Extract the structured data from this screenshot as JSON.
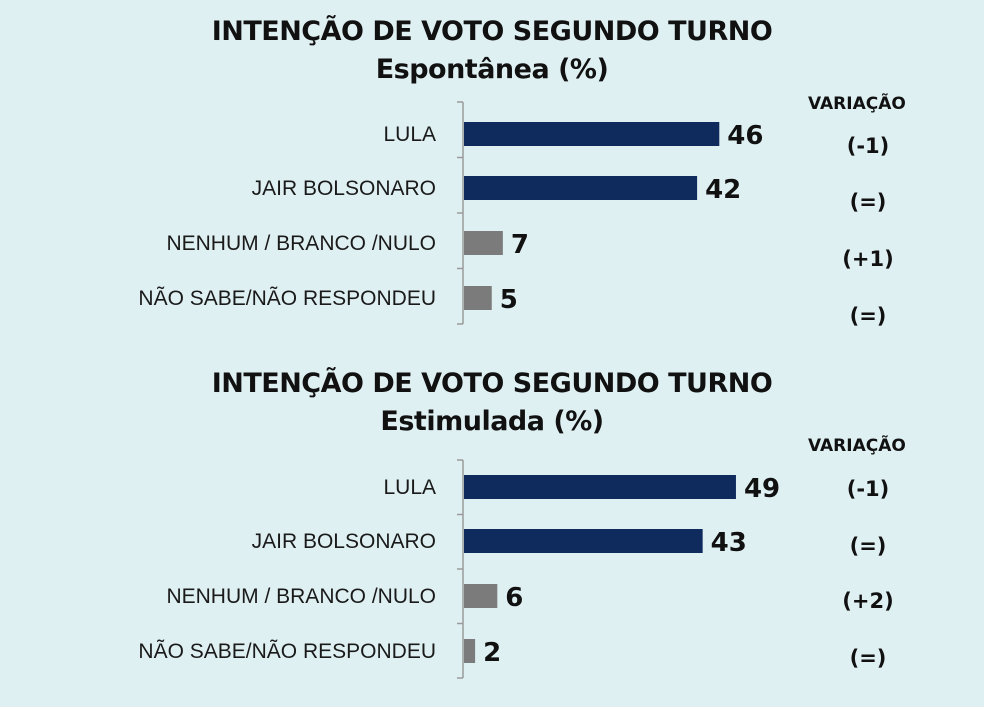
{
  "chart_data": [
    {
      "type": "bar",
      "orientation": "horizontal",
      "title": "INTENÇÃO DE VOTO SEGUNDO TURNO",
      "subtitle": "Espontânea (%)",
      "variation_header": "VARIAÇÃO",
      "categories": [
        "LULA",
        "JAIR BOLSONARO",
        "NENHUM / BRANCO /NULO",
        "NÃO SABE/NÃO RESPONDEU"
      ],
      "values": [
        46,
        42,
        7,
        5
      ],
      "value_labels": [
        "46",
        "42",
        "7",
        "5"
      ],
      "variations": [
        "(-1)",
        "(=)",
        "(+1)",
        "(=)"
      ],
      "colors": [
        "#0f2a5c",
        "#0f2a5c",
        "#7b7b7b",
        "#7b7b7b"
      ]
    },
    {
      "type": "bar",
      "orientation": "horizontal",
      "title": "INTENÇÃO DE VOTO SEGUNDO TURNO",
      "subtitle": "Estimulada (%)",
      "variation_header": "VARIAÇÃO",
      "categories": [
        "LULA",
        "JAIR BOLSONARO",
        "NENHUM / BRANCO /NULO",
        "NÃO SABE/NÃO RESPONDEU"
      ],
      "values": [
        49,
        43,
        6,
        2
      ],
      "value_labels": [
        "49",
        "43",
        "6",
        "2"
      ],
      "variations": [
        "(-1)",
        "(=)",
        "(+2)",
        "(=)"
      ],
      "colors": [
        "#0f2a5c",
        "#0f2a5c",
        "#7b7b7b",
        "#7b7b7b"
      ]
    }
  ]
}
